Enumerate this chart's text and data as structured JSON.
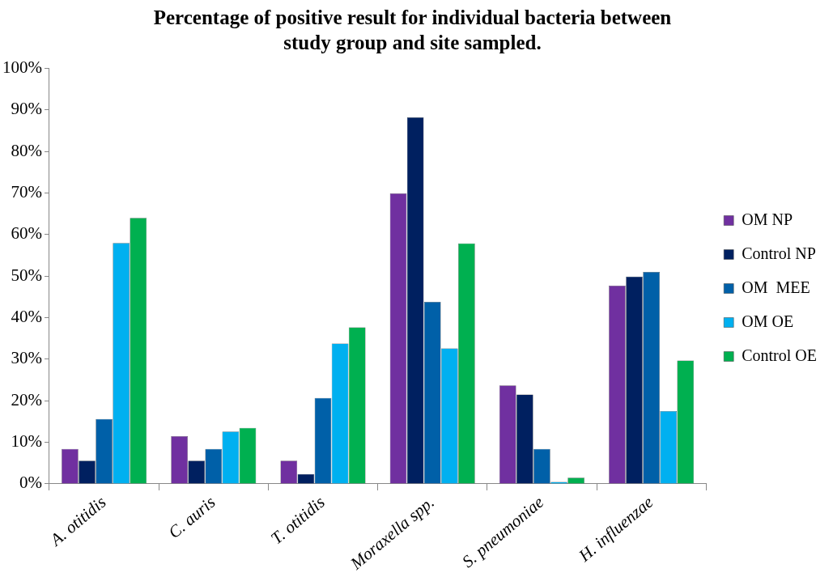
{
  "chart_data": {
    "type": "bar",
    "title": "Percentage of positive result for individual bacteria between study group and site sampled.",
    "categories": [
      "A. otitidis",
      "C. auris",
      "T. otitidis",
      "Moraxella spp.",
      "S. pneumoniae",
      "H. influenzae"
    ],
    "series": [
      {
        "name": "OM NP",
        "color": "#7030a0",
        "values": [
          8.4,
          11.5,
          5.6,
          69.9,
          23.7,
          47.7
        ]
      },
      {
        "name": "Control NP",
        "color": "#002060",
        "values": [
          5.6,
          5.6,
          2.4,
          88.2,
          21.5,
          49.9
        ]
      },
      {
        "name": "OM  MEE",
        "color": "#0060a8",
        "values": [
          15.6,
          8.4,
          20.7,
          43.8,
          8.4,
          51
        ]
      },
      {
        "name": "OM OE",
        "color": "#00b0f0",
        "values": [
          58,
          12.6,
          33.8,
          32.6,
          0.5,
          17.5
        ]
      },
      {
        "name": "Control OE",
        "color": "#00b050",
        "values": [
          64,
          13.5,
          37.7,
          57.9,
          1.5,
          29.7
        ]
      }
    ],
    "ylim": [
      0,
      100
    ],
    "yticks": [
      {
        "value": 0,
        "label": "0%"
      },
      {
        "value": 10,
        "label": "10%"
      },
      {
        "value": 20,
        "label": "20%"
      },
      {
        "value": 30,
        "label": "30%"
      },
      {
        "value": 40,
        "label": "40%"
      },
      {
        "value": 50,
        "label": "50%"
      },
      {
        "value": 60,
        "label": "60%"
      },
      {
        "value": 70,
        "label": "70%"
      },
      {
        "value": 80,
        "label": "80%"
      },
      {
        "value": 90,
        "label": "90%"
      },
      {
        "value": 100,
        "label": "100%"
      }
    ],
    "grid": false,
    "legend": "right"
  }
}
